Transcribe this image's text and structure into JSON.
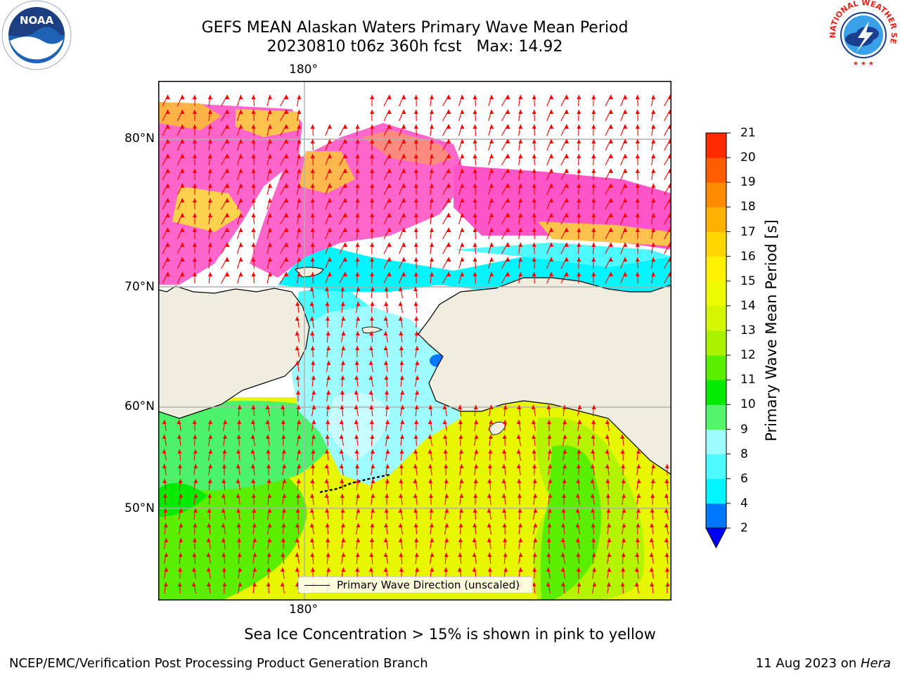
{
  "title": {
    "line1": "GEFS MEAN Alaskan Waters Primary Wave Mean Period",
    "line2": "20230810 t06z 360h fcst   Max: 14.92"
  },
  "map": {
    "lon_label_top": "180°",
    "lon_label_bottom": "180°",
    "lat_labels": [
      "80°N",
      "70°N",
      "60°N",
      "50°N"
    ],
    "land_color": "#efedde",
    "arrow_color": "#ff0000",
    "legend_label": "Primary Wave Direction (unscaled)"
  },
  "colorbar": {
    "title": "Primary Wave Mean Period [s]",
    "ticks": [
      "2",
      "4",
      "6",
      "8",
      "9",
      "10",
      "11",
      "12",
      "13",
      "14",
      "15",
      "16",
      "17",
      "18",
      "19",
      "20",
      "21"
    ],
    "colors": [
      "#0077ff",
      "#00f5ff",
      "#4cfaff",
      "#9dfcff",
      "#52f56c",
      "#00eb00",
      "#5aee00",
      "#aaf200",
      "#d4f700",
      "#eefa00",
      "#fff200",
      "#ffd600",
      "#ffb000",
      "#ff8c00",
      "#ff5c00",
      "#ff2a00",
      "#ff0000"
    ],
    "extend_color": "#0000ff"
  },
  "caption": "Sea Ice Concentration > 15% is shown in pink to yellow",
  "footer": {
    "left": "NCEP/EMC/Verification Post Processing Product Generation Branch",
    "right_prefix": "11 Aug 2023 on ",
    "right_host": "Hera"
  },
  "logos": {
    "noaa": "NOAA",
    "nws": "NATIONAL WEATHER SERVICE"
  }
}
